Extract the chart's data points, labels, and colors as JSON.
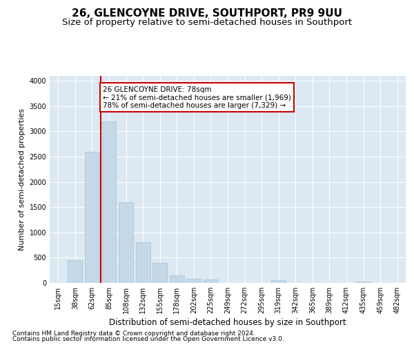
{
  "title": "26, GLENCOYNE DRIVE, SOUTHPORT, PR9 9UU",
  "subtitle": "Size of property relative to semi-detached houses in Southport",
  "xlabel": "Distribution of semi-detached houses by size in Southport",
  "ylabel": "Number of semi-detached properties",
  "categories": [
    "15sqm",
    "38sqm",
    "62sqm",
    "85sqm",
    "108sqm",
    "132sqm",
    "155sqm",
    "178sqm",
    "202sqm",
    "225sqm",
    "249sqm",
    "272sqm",
    "295sqm",
    "319sqm",
    "342sqm",
    "365sqm",
    "389sqm",
    "412sqm",
    "435sqm",
    "459sqm",
    "482sqm"
  ],
  "values": [
    5,
    450,
    2600,
    3200,
    1600,
    800,
    400,
    150,
    80,
    70,
    0,
    0,
    0,
    50,
    0,
    0,
    0,
    0,
    30,
    0,
    0
  ],
  "bar_color": "#c5d8e8",
  "bar_edge_color": "#a8c0d4",
  "vline_color": "#cc0000",
  "vline_position": 2.5,
  "annotation_text_line1": "26 GLENCOYNE DRIVE: 78sqm",
  "annotation_text_line2": "← 21% of semi-detached houses are smaller (1,969)",
  "annotation_text_line3": "78% of semi-detached houses are larger (7,329) →",
  "ylim": [
    0,
    4100
  ],
  "yticks": [
    0,
    500,
    1000,
    1500,
    2000,
    2500,
    3000,
    3500,
    4000
  ],
  "plot_bg_color": "#dce9f2",
  "grid_color": "#ffffff",
  "vline_linewidth": 1.5,
  "footer1": "Contains HM Land Registry data © Crown copyright and database right 2024.",
  "footer2": "Contains public sector information licensed under the Open Government Licence v3.0.",
  "title_fontsize": 11,
  "subtitle_fontsize": 9.5,
  "xlabel_fontsize": 8.5,
  "ylabel_fontsize": 8,
  "tick_fontsize": 7,
  "annotation_fontsize": 7.5,
  "footer_fontsize": 6.5
}
